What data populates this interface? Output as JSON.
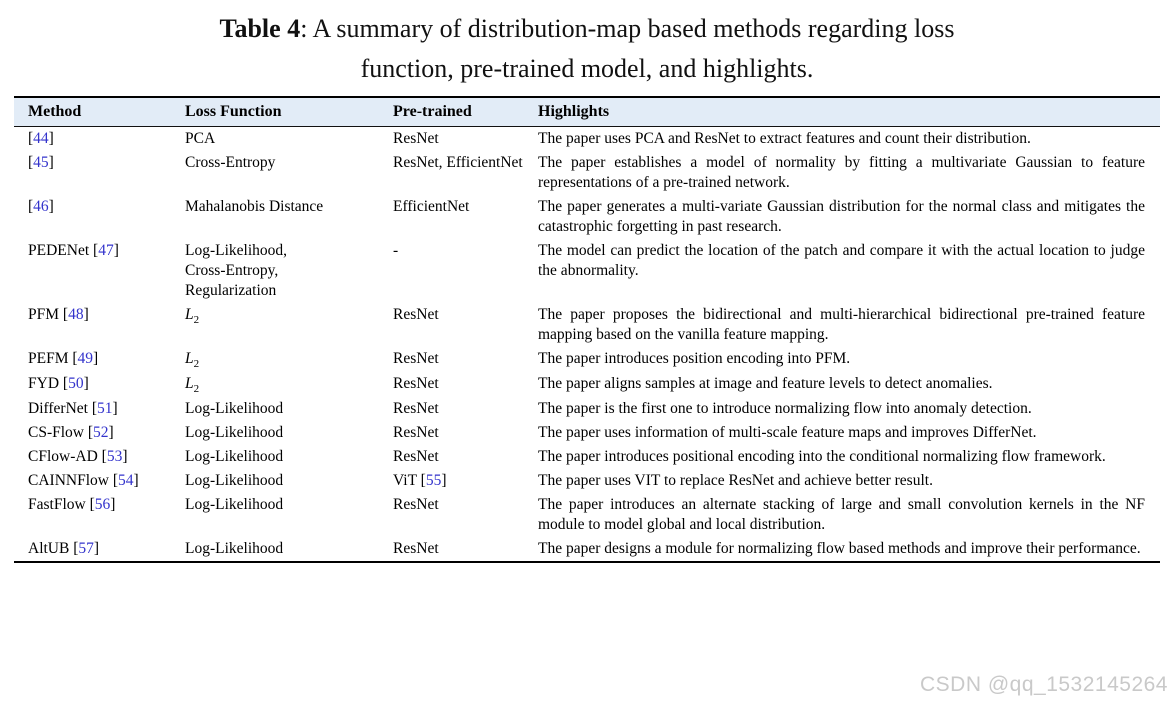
{
  "title": {
    "bold": "Table 4",
    "line1_rest": ": A summary of distribution-map based methods regarding loss",
    "line2": "function, pre-trained model, and highlights."
  },
  "colors": {
    "citation_blue": "#3333cc",
    "header_bg": "#e2ecf7"
  },
  "table": {
    "headers": [
      "Method",
      "Loss Function",
      "Pre-trained",
      "Highlights"
    ],
    "rows": [
      {
        "method_name": "",
        "method_cite": "44",
        "loss": "PCA",
        "pretrained": "ResNet",
        "pretrained_cite": null,
        "highlight": "The paper uses PCA and ResNet to extract features and count their distribution."
      },
      {
        "method_name": "",
        "method_cite": "45",
        "loss": "Cross-Entropy",
        "pretrained": "ResNet, EfficientNet",
        "pretrained_cite": null,
        "highlight": "The paper establishes a model of normality by fitting a multivariate Gaussian to feature representations of a pre-trained network."
      },
      {
        "method_name": "",
        "method_cite": "46",
        "loss": "Mahalanobis Distance",
        "pretrained": "EfficientNet",
        "pretrained_cite": null,
        "highlight": "The paper generates a multi-variate Gaussian distribution for the normal class and mitigates the catastrophic forgetting in past research."
      },
      {
        "method_name": "PEDENet",
        "method_cite": "47",
        "loss": [
          "Log-Likelihood,",
          "Cross-Entropy,",
          "Regularization"
        ],
        "pretrained": "-",
        "pretrained_cite": null,
        "highlight": "The model can predict the location of the patch and compare it with the actual location to judge the abnormality."
      },
      {
        "method_name": "PFM",
        "method_cite": "48",
        "loss": {
          "base": "L",
          "sub": "2"
        },
        "pretrained": "ResNet",
        "pretrained_cite": null,
        "highlight": "The paper proposes the bidirectional and multi-hierarchical bidirectional pre-trained feature mapping based on the vanilla feature mapping."
      },
      {
        "method_name": "PEFM",
        "method_cite": "49",
        "loss": {
          "base": "L",
          "sub": "2"
        },
        "pretrained": "ResNet",
        "pretrained_cite": null,
        "highlight": "The paper introduces position encoding into PFM."
      },
      {
        "method_name": "FYD",
        "method_cite": "50",
        "loss": {
          "base": "L",
          "sub": "2"
        },
        "pretrained": "ResNet",
        "pretrained_cite": null,
        "highlight": "The paper aligns samples at image and feature levels to detect anomalies."
      },
      {
        "method_name": "DifferNet",
        "method_cite": "51",
        "loss": "Log-Likelihood",
        "pretrained": "ResNet",
        "pretrained_cite": null,
        "highlight": "The paper is the first one to introduce normalizing flow into anomaly detection."
      },
      {
        "method_name": "CS-Flow",
        "method_cite": "52",
        "loss": "Log-Likelihood",
        "pretrained": "ResNet",
        "pretrained_cite": null,
        "highlight": "The paper uses information of multi-scale feature maps and improves DifferNet."
      },
      {
        "method_name": "CFlow-AD",
        "method_cite": "53",
        "loss": "Log-Likelihood",
        "pretrained": "ResNet",
        "pretrained_cite": null,
        "highlight": "The paper introduces positional encoding into the conditional normalizing flow framework."
      },
      {
        "method_name": "CAINNFlow",
        "method_cite": "54",
        "loss": "Log-Likelihood",
        "pretrained": "ViT",
        "pretrained_cite": "55",
        "highlight": "The paper uses VIT to replace ResNet and achieve better result."
      },
      {
        "method_name": "FastFlow",
        "method_cite": "56",
        "loss": "Log-Likelihood",
        "pretrained": "ResNet",
        "pretrained_cite": null,
        "highlight": "The paper introduces an alternate stacking of large and small convolution kernels in the NF module to model global and local distribution."
      },
      {
        "method_name": "AltUB",
        "method_cite": "57",
        "loss": "Log-Likelihood",
        "pretrained": "ResNet",
        "pretrained_cite": null,
        "highlight": "The paper designs a module for normalizing flow based methods and improve their performance."
      }
    ]
  },
  "watermark": "CSDN @qq_1532145264"
}
